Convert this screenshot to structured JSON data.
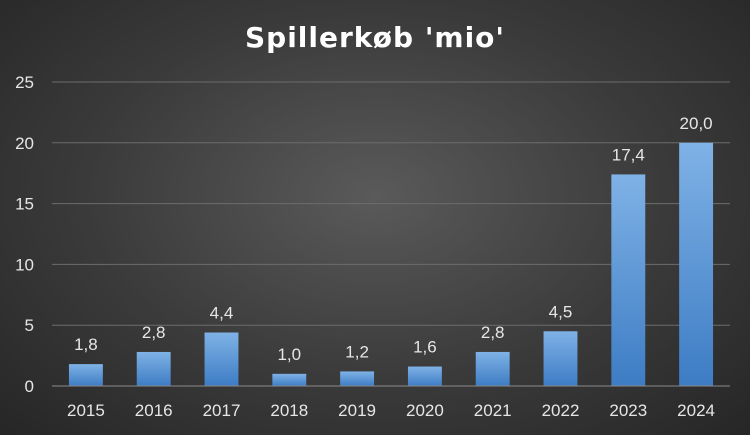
{
  "chart_data": {
    "type": "bar",
    "title": "Spillerkøb 'mio'",
    "categories": [
      "2015",
      "2016",
      "2017",
      "2018",
      "2019",
      "2020",
      "2021",
      "2022",
      "2023",
      "2024"
    ],
    "values": [
      1.8,
      2.8,
      4.4,
      1.0,
      1.2,
      1.6,
      2.8,
      4.5,
      17.4,
      20.0
    ],
    "data_labels": [
      "1,8",
      "2,8",
      "4,4",
      "1,0",
      "1,2",
      "1,6",
      "2,8",
      "4,5",
      "17,4",
      "20,0"
    ],
    "y_ticks": [
      "0",
      "5",
      "10",
      "15",
      "20",
      "25"
    ],
    "ylim": [
      0,
      25
    ],
    "xlabel": "",
    "ylabel": "",
    "grid": true,
    "legend": "none",
    "colors": {
      "bar_top": "#7fb2e6",
      "bar_bottom": "#3d7cc4"
    }
  }
}
